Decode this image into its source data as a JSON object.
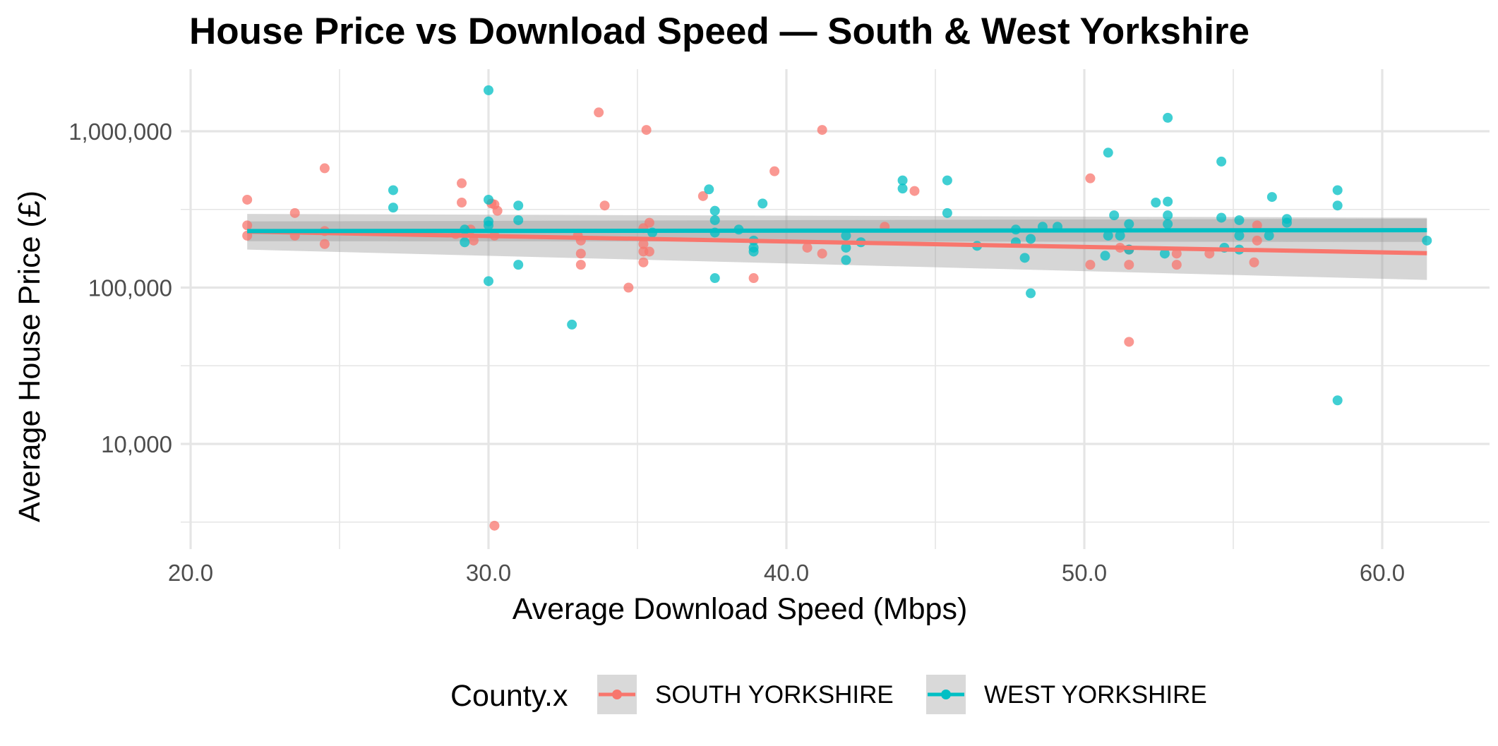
{
  "chart_data": {
    "type": "scatter",
    "title": "House Price vs Download Speed — South & West Yorkshire",
    "xlabel": "Average Download Speed (Mbps)",
    "ylabel": "Average House Price (£)",
    "xlim": [
      20,
      63
    ],
    "xticks": [
      20,
      30,
      40,
      50,
      60
    ],
    "xtick_labels": [
      "20.0",
      "30.0",
      "40.0",
      "50.0",
      "60.0"
    ],
    "yscale": "log10",
    "ylim": [
      2200,
      2300000
    ],
    "yticks": [
      10000,
      100000,
      1000000
    ],
    "ytick_labels": [
      "10,000",
      "100,000",
      "1,000,000"
    ],
    "grid": true,
    "legend": {
      "title": "County.x",
      "position": "bottom"
    },
    "colors": {
      "SOUTH YORKSHIRE": "#F8766D",
      "WEST YORKSHIRE": "#00BFC4",
      "ribbon": "#999999",
      "grid": "#e5e5e5"
    },
    "series": [
      {
        "name": "SOUTH YORKSHIRE",
        "color": "#F8766D",
        "trend": {
          "x0": 21.9,
          "y0": 228000,
          "x1": 61.5,
          "y1": 166000
        },
        "ribbon": {
          "at_x0": [
            175000,
            296000
          ],
          "at_x1": [
            112000,
            280000
          ]
        },
        "points": [
          [
            21.9,
            365000
          ],
          [
            21.9,
            250000
          ],
          [
            21.9,
            215000
          ],
          [
            23.5,
            300000
          ],
          [
            23.5,
            215000
          ],
          [
            24.5,
            580000
          ],
          [
            24.5,
            230000
          ],
          [
            24.5,
            190000
          ],
          [
            29.1,
            465000
          ],
          [
            29.1,
            350000
          ],
          [
            28.9,
            220000
          ],
          [
            29.4,
            235000
          ],
          [
            29.5,
            200000
          ],
          [
            30.1,
            345000
          ],
          [
            30.2,
            340000
          ],
          [
            30.2,
            215000
          ],
          [
            30.3,
            310000
          ],
          [
            30.2,
            3000
          ],
          [
            33.0,
            215000
          ],
          [
            33.1,
            200000
          ],
          [
            33.1,
            165000
          ],
          [
            33.1,
            140000
          ],
          [
            33.7,
            1320000
          ],
          [
            33.9,
            335000
          ],
          [
            34.7,
            100000
          ],
          [
            35.3,
            1020000
          ],
          [
            35.2,
            240000
          ],
          [
            35.2,
            190000
          ],
          [
            35.2,
            170000
          ],
          [
            35.2,
            145000
          ],
          [
            35.4,
            260000
          ],
          [
            35.4,
            170000
          ],
          [
            37.2,
            385000
          ],
          [
            38.9,
            115000
          ],
          [
            39.6,
            555000
          ],
          [
            40.7,
            180000
          ],
          [
            41.2,
            1020000
          ],
          [
            41.2,
            165000
          ],
          [
            43.3,
            245000
          ],
          [
            44.3,
            415000
          ],
          [
            50.2,
            500000
          ],
          [
            50.2,
            140000
          ],
          [
            51.2,
            180000
          ],
          [
            51.5,
            45000
          ],
          [
            51.5,
            175000
          ],
          [
            51.5,
            140000
          ],
          [
            53.1,
            165000
          ],
          [
            53.1,
            140000
          ],
          [
            54.2,
            165000
          ],
          [
            55.7,
            145000
          ],
          [
            55.8,
            250000
          ],
          [
            55.8,
            200000
          ]
        ]
      },
      {
        "name": "WEST YORKSHIRE",
        "color": "#00BFC4",
        "trend": {
          "x0": 21.9,
          "y0": 230000,
          "x1": 61.5,
          "y1": 233000
        },
        "ribbon": {
          "at_x0": [
            198000,
            265000
          ],
          "at_x1": [
            196000,
            276000
          ]
        },
        "points": [
          [
            26.8,
            420000
          ],
          [
            26.8,
            325000
          ],
          [
            29.2,
            235000
          ],
          [
            29.2,
            195000
          ],
          [
            30.0,
            1830000
          ],
          [
            30.0,
            365000
          ],
          [
            30.0,
            265000
          ],
          [
            30.0,
            250000
          ],
          [
            30.0,
            110000
          ],
          [
            31.0,
            335000
          ],
          [
            31.0,
            270000
          ],
          [
            31.0,
            140000
          ],
          [
            32.8,
            58000
          ],
          [
            35.5,
            225000
          ],
          [
            37.4,
            425000
          ],
          [
            37.6,
            310000
          ],
          [
            37.6,
            270000
          ],
          [
            37.6,
            225000
          ],
          [
            37.6,
            115000
          ],
          [
            38.4,
            235000
          ],
          [
            39.2,
            345000
          ],
          [
            38.9,
            200000
          ],
          [
            38.9,
            180000
          ],
          [
            38.9,
            170000
          ],
          [
            42.0,
            215000
          ],
          [
            42.0,
            180000
          ],
          [
            42.0,
            150000
          ],
          [
            42.5,
            195000
          ],
          [
            43.9,
            485000
          ],
          [
            43.9,
            430000
          ],
          [
            45.4,
            485000
          ],
          [
            45.4,
            300000
          ],
          [
            46.4,
            185000
          ],
          [
            47.7,
            235000
          ],
          [
            47.7,
            195000
          ],
          [
            48.0,
            155000
          ],
          [
            48.2,
            205000
          ],
          [
            48.2,
            92000
          ],
          [
            48.6,
            245000
          ],
          [
            49.1,
            245000
          ],
          [
            50.8,
            730000
          ],
          [
            51.0,
            290000
          ],
          [
            50.8,
            215000
          ],
          [
            50.7,
            160000
          ],
          [
            51.2,
            215000
          ],
          [
            51.5,
            255000
          ],
          [
            51.5,
            175000
          ],
          [
            52.4,
            350000
          ],
          [
            52.8,
            1220000
          ],
          [
            52.8,
            355000
          ],
          [
            52.8,
            290000
          ],
          [
            52.8,
            255000
          ],
          [
            52.7,
            165000
          ],
          [
            54.6,
            640000
          ],
          [
            54.6,
            280000
          ],
          [
            54.7,
            180000
          ],
          [
            55.2,
            270000
          ],
          [
            55.2,
            215000
          ],
          [
            55.2,
            175000
          ],
          [
            56.3,
            380000
          ],
          [
            56.2,
            215000
          ],
          [
            56.8,
            275000
          ],
          [
            56.8,
            260000
          ],
          [
            58.5,
            420000
          ],
          [
            58.5,
            335000
          ],
          [
            58.5,
            19000
          ],
          [
            61.5,
            200000
          ]
        ]
      }
    ]
  }
}
